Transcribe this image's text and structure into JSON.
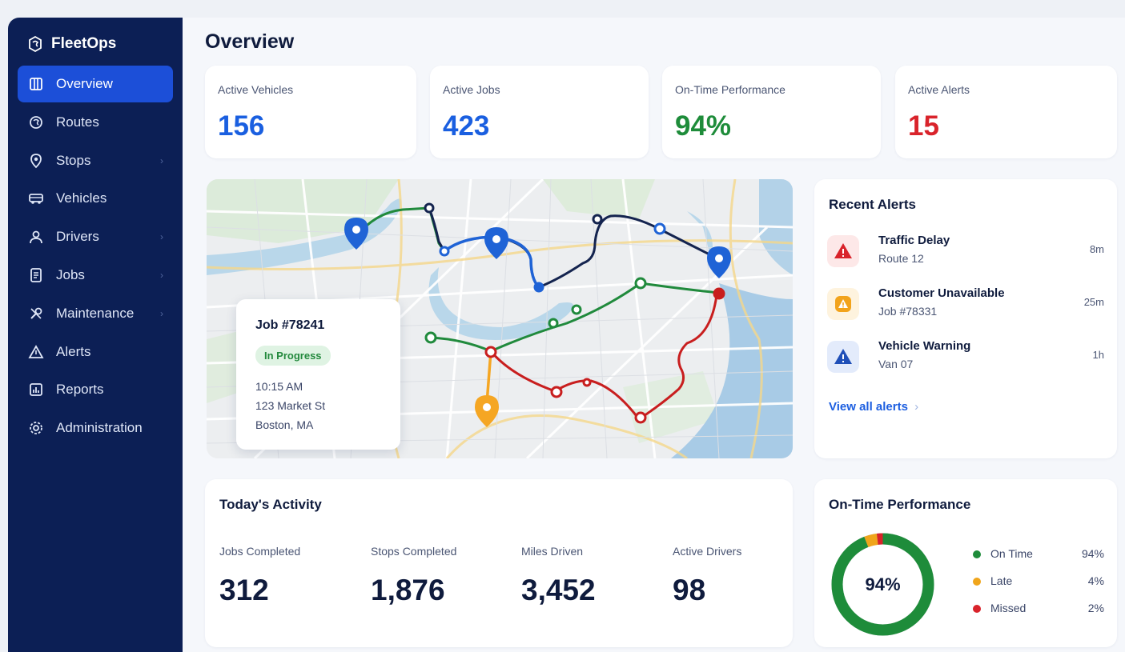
{
  "app": {
    "name": "FleetOps"
  },
  "sidebar": {
    "items": [
      {
        "label": "Overview",
        "icon": "overview-icon",
        "active": true,
        "has_submenu": false
      },
      {
        "label": "Routes",
        "icon": "routes-icon",
        "active": false,
        "has_submenu": false
      },
      {
        "label": "Stops",
        "icon": "stops-icon",
        "active": false,
        "has_submenu": true
      },
      {
        "label": "Vehicles",
        "icon": "vehicles-icon",
        "active": false,
        "has_submenu": false
      },
      {
        "label": "Drivers",
        "icon": "drivers-icon",
        "active": false,
        "has_submenu": true
      },
      {
        "label": "Jobs",
        "icon": "jobs-icon",
        "active": false,
        "has_submenu": true
      },
      {
        "label": "Maintenance",
        "icon": "maintenance-icon",
        "active": false,
        "has_submenu": true
      },
      {
        "label": "Alerts",
        "icon": "alerts-icon",
        "active": false,
        "has_submenu": false
      },
      {
        "label": "Reports",
        "icon": "reports-icon",
        "active": false,
        "has_submenu": false
      },
      {
        "label": "Administration",
        "icon": "administration-icon",
        "active": false,
        "has_submenu": false
      }
    ]
  },
  "page": {
    "title": "Overview"
  },
  "kpis": [
    {
      "label": "Active Vehicles",
      "value": "156",
      "color": "#1a5fe0"
    },
    {
      "label": "Active Jobs",
      "value": "423",
      "color": "#1a5fe0"
    },
    {
      "label": "On-Time Performance",
      "value": "94%",
      "color": "#1e8c3a"
    },
    {
      "label": "Active Alerts",
      "value": "15",
      "color": "#d9232b"
    }
  ],
  "map": {
    "job_card": {
      "title": "Job #78241",
      "status": "In Progress",
      "time": "10:15 AM",
      "address_line1": "123 Market St",
      "address_line2": "Boston, MA"
    },
    "route_colors": {
      "blue": "#1f63d6",
      "navy": "#14244f",
      "green": "#208a3c",
      "red": "#c81e1e",
      "orange": "#f5a623"
    }
  },
  "alerts": {
    "title": "Recent Alerts",
    "items": [
      {
        "title": "Traffic Delay",
        "subtitle": "Route 12",
        "time": "8m",
        "icon": "warning-icon",
        "color": "#d9232b",
        "bg": "#fde8e8"
      },
      {
        "title": "Customer Unavailable",
        "subtitle": "Job #78331",
        "time": "25m",
        "icon": "warning-icon",
        "color": "#f2a31b",
        "bg": "#fef3de"
      },
      {
        "title": "Vehicle Warning",
        "subtitle": "Van 07",
        "time": "1h",
        "icon": "warning-icon",
        "color": "#1f4fb8",
        "bg": "#e3ebfb"
      }
    ],
    "view_all": "View all alerts",
    "view_all_chevron": "›"
  },
  "activity": {
    "title": "Today's Activity",
    "items": [
      {
        "label": "Jobs Completed",
        "value": "312"
      },
      {
        "label": "Stops Completed",
        "value": "1,876"
      },
      {
        "label": "Miles Driven",
        "value": "3,452"
      },
      {
        "label": "Active Drivers",
        "value": "98"
      }
    ]
  },
  "on_time": {
    "title": "On-Time Performance",
    "center": "94%",
    "legend": [
      {
        "name": "On Time",
        "pct": "94%",
        "value": 94,
        "color": "#1e8c3a"
      },
      {
        "name": "Late",
        "pct": "4%",
        "value": 4,
        "color": "#f0a51b"
      },
      {
        "name": "Missed",
        "pct": "2%",
        "value": 2,
        "color": "#d9232b"
      }
    ]
  }
}
